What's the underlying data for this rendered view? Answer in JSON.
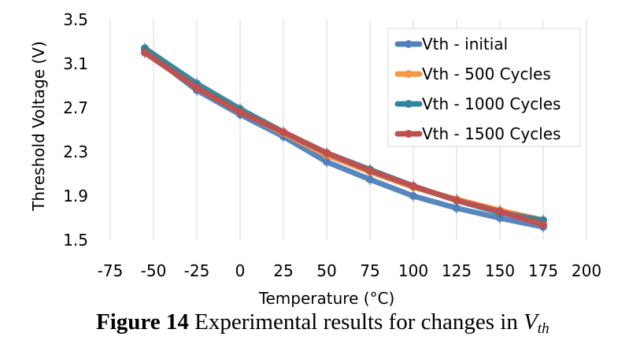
{
  "chart_data": {
    "type": "line",
    "xlabel": "Temperature (°C)",
    "ylabel": "Threshold Voltage (V)",
    "xlim": [
      -75,
      200
    ],
    "ylim": [
      1.5,
      3.5
    ],
    "xticks": [
      -75,
      -50,
      -25,
      0,
      25,
      50,
      75,
      100,
      125,
      150,
      175,
      200
    ],
    "yticks": [
      1.5,
      1.9,
      2.3,
      2.7,
      3.1,
      3.5
    ],
    "grid": "vertical",
    "legend_position": "top-right",
    "series": [
      {
        "name": "Vth - initial",
        "color": "#4f81bd",
        "x": [
          -55,
          -25,
          0,
          25,
          50,
          75,
          100,
          125,
          150,
          175
        ],
        "y": [
          3.22,
          2.86,
          2.64,
          2.44,
          2.21,
          2.05,
          1.9,
          1.79,
          1.7,
          1.62
        ]
      },
      {
        "name": "Vth - 500 Cycles",
        "color": "#f79646",
        "x": [
          -55,
          -25,
          0,
          25,
          50,
          75,
          100,
          125,
          150,
          175
        ],
        "y": [
          3.24,
          2.9,
          2.67,
          2.47,
          2.27,
          2.12,
          1.98,
          1.87,
          1.77,
          1.68
        ]
      },
      {
        "name": "Vth - 1000 Cycles",
        "color": "#31859c",
        "x": [
          -55,
          -25,
          0,
          25,
          50,
          75,
          100,
          125,
          150,
          175
        ],
        "y": [
          3.24,
          2.92,
          2.69,
          2.48,
          2.29,
          2.14,
          1.99,
          1.86,
          1.75,
          1.68
        ]
      },
      {
        "name": "Vth - 1500 Cycles",
        "color": "#c0504d",
        "x": [
          -55,
          -25,
          0,
          25,
          50,
          75,
          100,
          125,
          150,
          175
        ],
        "y": [
          3.2,
          2.88,
          2.66,
          2.48,
          2.29,
          2.13,
          1.99,
          1.86,
          1.76,
          1.64
        ]
      }
    ]
  },
  "caption": {
    "label": "Figure 14",
    "text": " Experimental results for changes in ",
    "symbol": "V",
    "subscript": "th"
  }
}
